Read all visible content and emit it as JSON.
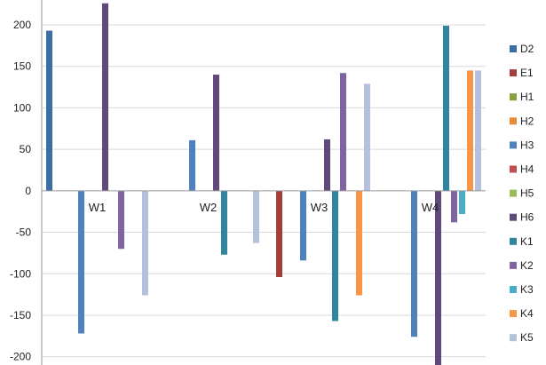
{
  "chart_data": {
    "type": "bar",
    "title": "",
    "xlabel": "",
    "ylabel": "",
    "ylim": [
      -210,
      230
    ],
    "yticks": [
      200,
      150,
      100,
      50,
      0,
      -50,
      -100,
      -150,
      -200
    ],
    "grid": true,
    "legend_position": "right",
    "categories": [
      "W1",
      "W2",
      "W3",
      "W4"
    ],
    "series": [
      {
        "name": "D2",
        "color": "#3a6ea5",
        "values": [
          193,
          0,
          0,
          0
        ]
      },
      {
        "name": "E1",
        "color": "#a33f3a",
        "values": [
          0,
          0,
          -104,
          0
        ]
      },
      {
        "name": "H1",
        "color": "#86a340",
        "values": [
          0,
          0,
          0,
          0
        ]
      },
      {
        "name": "H2",
        "color": "#e8893a",
        "values": [
          0,
          0,
          0,
          0
        ]
      },
      {
        "name": "H3",
        "color": "#4f81bd",
        "values": [
          -172,
          61,
          -84,
          -176
        ]
      },
      {
        "name": "H4",
        "color": "#c0504d",
        "values": [
          0,
          0,
          0,
          0
        ]
      },
      {
        "name": "H5",
        "color": "#9bbb59",
        "values": [
          0,
          0,
          0,
          0
        ]
      },
      {
        "name": "H6",
        "color": "#604a7b",
        "values": [
          226,
          140,
          62,
          -213
        ]
      },
      {
        "name": "K1",
        "color": "#31859c",
        "values": [
          0,
          -77,
          -157,
          199
        ]
      },
      {
        "name": "K2",
        "color": "#8064a2",
        "values": [
          -70,
          0,
          142,
          -38
        ]
      },
      {
        "name": "K3",
        "color": "#4bacc6",
        "values": [
          0,
          0,
          0,
          -28
        ]
      },
      {
        "name": "K4",
        "color": "#f79646",
        "values": [
          0,
          0,
          -126,
          145
        ]
      },
      {
        "name": "K5",
        "color": "#b3c1dc",
        "values": [
          -126,
          -63,
          129,
          145
        ]
      }
    ]
  }
}
